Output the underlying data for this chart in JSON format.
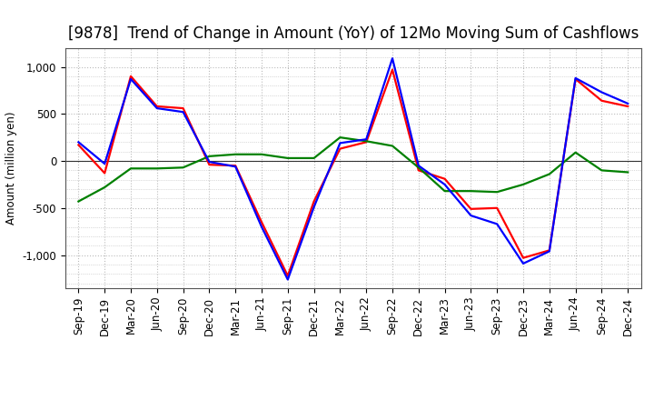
{
  "title": "[9878]  Trend of Change in Amount (YoY) of 12Mo Moving Sum of Cashflows",
  "ylabel": "Amount (million yen)",
  "x_labels": [
    "Sep-19",
    "Dec-19",
    "Mar-20",
    "Jun-20",
    "Sep-20",
    "Dec-20",
    "Mar-21",
    "Jun-21",
    "Sep-21",
    "Dec-21",
    "Mar-22",
    "Jun-22",
    "Sep-22",
    "Dec-22",
    "Mar-23",
    "Jun-23",
    "Sep-23",
    "Dec-23",
    "Mar-24",
    "Jun-24",
    "Sep-24",
    "Dec-24"
  ],
  "operating": [
    170,
    -130,
    900,
    580,
    560,
    -40,
    -50,
    -650,
    -1220,
    -430,
    130,
    200,
    970,
    -100,
    -190,
    -510,
    -500,
    -1030,
    -950,
    870,
    640,
    580
  ],
  "investing": [
    -430,
    -280,
    -80,
    -80,
    -70,
    50,
    70,
    70,
    30,
    30,
    250,
    210,
    160,
    -70,
    -320,
    -320,
    -330,
    -250,
    -140,
    90,
    -100,
    -120
  ],
  "free": [
    200,
    -30,
    870,
    560,
    520,
    -10,
    -60,
    -700,
    -1260,
    -490,
    190,
    230,
    1090,
    -50,
    -250,
    -580,
    -670,
    -1090,
    -960,
    880,
    730,
    610
  ],
  "ylim": [
    -1350,
    1200
  ],
  "yticks": [
    -1000,
    -500,
    0,
    500,
    1000
  ],
  "operating_color": "#ff0000",
  "investing_color": "#008000",
  "free_color": "#0000ff",
  "bg_color": "#ffffff",
  "grid_color": "#bbbbbb",
  "title_fontsize": 12,
  "axis_fontsize": 8.5,
  "legend_fontsize": 10
}
